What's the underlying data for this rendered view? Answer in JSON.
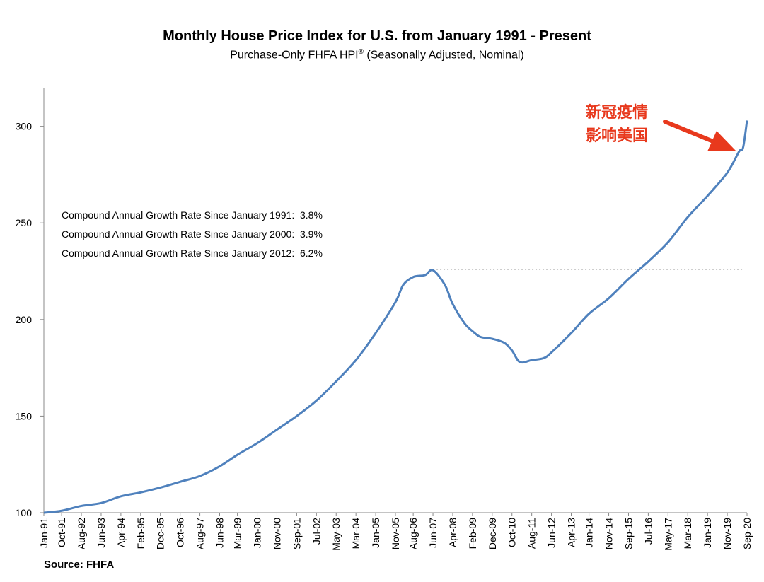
{
  "chart_data": {
    "type": "line",
    "title": "Monthly House Price Index for U.S. from January 1991 - Present",
    "subtitle_main": "Purchase-Only FHFA HPI",
    "subtitle_reg": "®",
    "subtitle_tail": " (Seasonally Adjusted, Nominal)",
    "ylim": [
      100,
      320
    ],
    "yticks": [
      100,
      150,
      200,
      250,
      300
    ],
    "xticks": [
      "Jan-91",
      "Oct-91",
      "Aug-92",
      "Jun-93",
      "Apr-94",
      "Feb-95",
      "Dec-95",
      "Oct-96",
      "Aug-97",
      "Jun-98",
      "Mar-99",
      "Jan-00",
      "Nov-00",
      "Sep-01",
      "Jul-02",
      "May-03",
      "Mar-04",
      "Jan-05",
      "Nov-05",
      "Aug-06",
      "Jun-07",
      "Apr-08",
      "Feb-09",
      "Dec-09",
      "Oct-10",
      "Aug-11",
      "Jun-12",
      "Apr-13",
      "Jan-14",
      "Nov-14",
      "Sep-15",
      "Jul-16",
      "May-17",
      "Mar-18",
      "Jan-19",
      "Nov-19",
      "Sep-20"
    ],
    "series": [
      {
        "color": "#4f81bd",
        "points": [
          [
            "Jan-91",
            100
          ],
          [
            "Oct-91",
            101
          ],
          [
            "Aug-92",
            103.5
          ],
          [
            "Jun-93",
            105
          ],
          [
            "Apr-94",
            108.5
          ],
          [
            "Feb-95",
            110.5
          ],
          [
            "Dec-95",
            113
          ],
          [
            "Oct-96",
            116
          ],
          [
            "Aug-97",
            119
          ],
          [
            "Jun-98",
            124
          ],
          [
            "Mar-99",
            130
          ],
          [
            "Jan-00",
            136
          ],
          [
            "Nov-00",
            143
          ],
          [
            "Sep-01",
            150
          ],
          [
            "Jul-02",
            158
          ],
          [
            "May-03",
            168
          ],
          [
            "Mar-04",
            179
          ],
          [
            "Jan-05",
            193
          ],
          [
            "Nov-05",
            209
          ],
          [
            "Mar-06",
            218
          ],
          [
            "Aug-06",
            222
          ],
          [
            "Feb-07",
            223
          ],
          [
            "Jun-07",
            225.5
          ],
          [
            "Dec-07",
            218
          ],
          [
            "Apr-08",
            208
          ],
          [
            "Oct-08",
            198
          ],
          [
            "Feb-09",
            194
          ],
          [
            "Jun-09",
            191
          ],
          [
            "Dec-09",
            190
          ],
          [
            "Jun-10",
            188
          ],
          [
            "Oct-10",
            184
          ],
          [
            "Feb-11",
            178
          ],
          [
            "Aug-11",
            179
          ],
          [
            "Feb-12",
            180
          ],
          [
            "Jun-12",
            183
          ],
          [
            "Apr-13",
            193
          ],
          [
            "Jan-14",
            203
          ],
          [
            "Nov-14",
            211
          ],
          [
            "Sep-15",
            221
          ],
          [
            "Jul-16",
            230
          ],
          [
            "May-17",
            240
          ],
          [
            "Mar-18",
            253
          ],
          [
            "Jan-19",
            264
          ],
          [
            "Nov-19",
            276
          ],
          [
            "May-20",
            287
          ],
          [
            "Jul-20",
            289
          ],
          [
            "Sep-20",
            303
          ]
        ]
      }
    ],
    "reference_line": {
      "y": 226,
      "from": "Jun-07",
      "style": "dotted",
      "color": "#999999"
    },
    "annotations": [
      "Compound Annual Growth Rate Since January 1991:  3.8%",
      "Compound Annual Growth Rate Since January 2000:  3.9%",
      "Compound Annual Growth Rate Since January 2012:  6.2%"
    ],
    "callout": {
      "line1": "新冠疫情",
      "line2": "影响美国",
      "color": "#e8391d"
    },
    "source": "Source: FHFA",
    "grid": false,
    "legend": "none"
  }
}
